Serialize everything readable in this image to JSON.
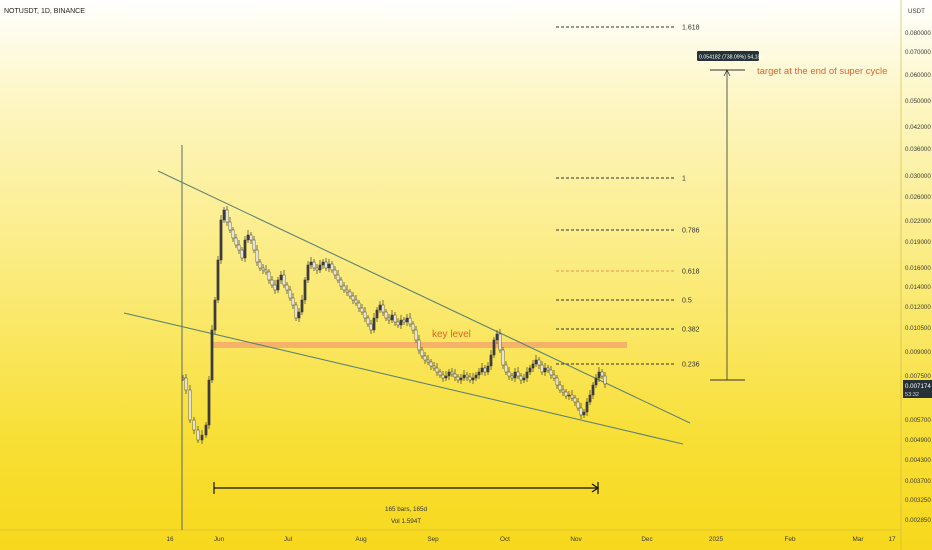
{
  "header": {
    "title": "NOTUSDT, 1D, BINANCE",
    "axis_unit": "USDT"
  },
  "chart_data": {
    "type": "candlestick",
    "symbol": "NOTUSDT",
    "interval": "1D",
    "exchange": "BINANCE",
    "price_scale": "log",
    "price_ticks": [
      "0.080000",
      "0.070000",
      "0.060000",
      "0.050000",
      "0.042000",
      "0.036000",
      "0.030000",
      "0.026000",
      "0.022000",
      "0.019000",
      "0.016000",
      "0.014000",
      "0.012000",
      "0.010500",
      "0.009000",
      "0.007500",
      "0.005700",
      "0.004900",
      "0.004300",
      "0.003700",
      "0.003250",
      "0.002850"
    ],
    "time_ticks": [
      "16",
      "Jun",
      "Jul",
      "Aug",
      "Sep",
      "Oct",
      "Nov",
      "Dec",
      "2025",
      "Feb",
      "Mar",
      "17"
    ],
    "current_price": "0.007174",
    "countdown": "53:32",
    "fib_levels": [
      {
        "label": "1.618",
        "price": 0.088
      },
      {
        "label": "1",
        "price": 0.029
      },
      {
        "label": "0.786",
        "price": 0.0205
      },
      {
        "label": "0.618",
        "price": 0.0163,
        "highlight": true
      },
      {
        "label": "0.5",
        "price": 0.013
      },
      {
        "label": "0.382",
        "price": 0.0106
      },
      {
        "label": "0.236",
        "price": 0.0081
      }
    ],
    "key_level": {
      "label": "key level",
      "price": 0.0093
    },
    "target": {
      "label": "target at the end of super cycle",
      "measure": "0.054182 (738.09%) 54,182",
      "from_price": 0.0073,
      "to_price": 0.061
    },
    "range_measure": {
      "bars": "165 bars, 165d",
      "volume": "Vol 1.594T"
    },
    "colors": {
      "up": "#26a69a",
      "down": "#ef5350",
      "candle": "#3d3d3d",
      "key_level": "#f3a86a",
      "fib": "#333333",
      "fib_highlight": "#e8954a",
      "wedge": "#6b8a7a",
      "annotation": "#e0632a",
      "price_tag": "#263238"
    },
    "candles": []
  }
}
